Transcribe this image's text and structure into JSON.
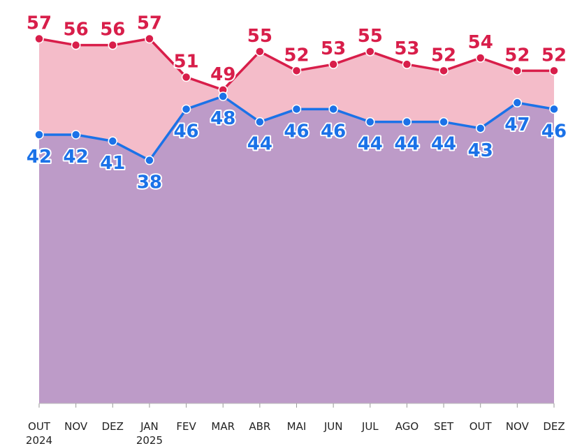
{
  "chart_data": {
    "type": "line",
    "categories": [
      "OUT",
      "NOV",
      "DEZ",
      "JAN",
      "FEV",
      "MAR",
      "ABR",
      "MAI",
      "JUN",
      "JUL",
      "AGO",
      "SET",
      "OUT",
      "NOV",
      "DEZ"
    ],
    "category_years": [
      "2024",
      null,
      null,
      "2025",
      null,
      null,
      null,
      null,
      null,
      null,
      null,
      null,
      null,
      null,
      null
    ],
    "series": [
      {
        "color": "#d81e4a",
        "area_color": "#f4bcc9",
        "values": [
          57,
          56,
          56,
          57,
          51,
          49,
          55,
          52,
          53,
          55,
          53,
          52,
          54,
          52,
          52
        ]
      },
      {
        "color": "#1b72e8",
        "area_color": "#bd9bc8",
        "values": [
          42,
          42,
          41,
          38,
          46,
          48,
          44,
          46,
          46,
          44,
          44,
          44,
          43,
          47,
          46
        ]
      }
    ],
    "ylim": [
      0,
      60
    ]
  }
}
